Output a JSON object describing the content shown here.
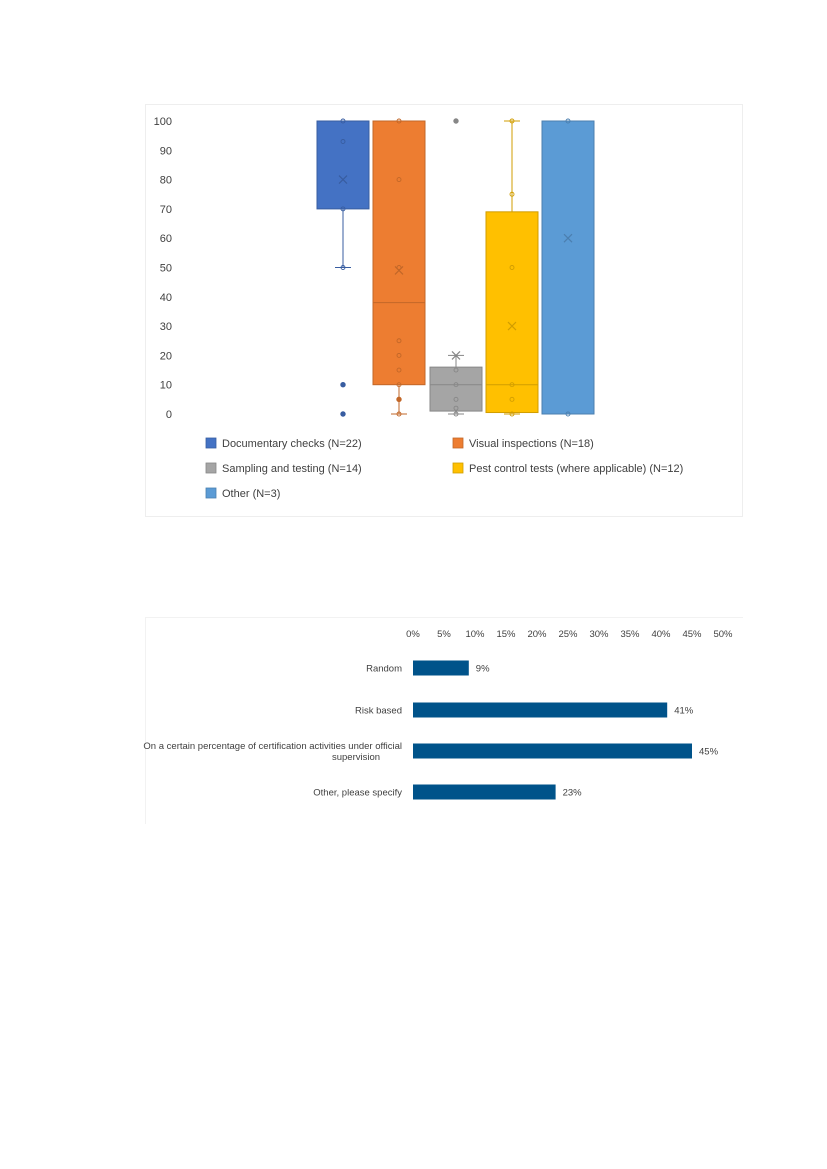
{
  "chart_data": [
    {
      "type": "boxplot",
      "ylim": [
        0,
        100
      ],
      "y_ticks": [
        0,
        10,
        20,
        30,
        40,
        50,
        60,
        70,
        80,
        90,
        100
      ],
      "grid": false,
      "legend_position": "bottom",
      "series": [
        {
          "name": "Documentary checks (N=22)",
          "color": "#4472C4",
          "box": {
            "min": 50,
            "q1": 70,
            "median": 100,
            "q3": 100,
            "max": 100,
            "mean": 80
          },
          "outliers": [
            10,
            0
          ],
          "points": [
            100,
            93,
            70,
            50,
            10,
            0
          ]
        },
        {
          "name": "Visual inspections (N=18)",
          "color": "#ED7D31",
          "box": {
            "min": 0,
            "q1": 10,
            "median": 38,
            "q3": 100,
            "max": 100,
            "mean": 49
          },
          "outliers": [
            5
          ],
          "points": [
            100,
            80,
            50,
            25,
            20,
            15,
            10,
            5,
            0
          ]
        },
        {
          "name": "Sampling and testing (N=14)",
          "color": "#A5A5A5",
          "box": {
            "min": 0,
            "q1": 1,
            "median": 10,
            "q3": 16,
            "max": 20,
            "mean": 20
          },
          "outliers": [
            100
          ],
          "points": [
            15,
            10,
            5,
            2,
            0
          ]
        },
        {
          "name": "Pest control tests (where applicable) (N=12)",
          "color": "#FFC000",
          "box": {
            "min": 0,
            "q1": 0.5,
            "median": 10,
            "q3": 69,
            "max": 100,
            "mean": 30
          },
          "outliers": [],
          "points": [
            100,
            75,
            50,
            10,
            5,
            0
          ]
        },
        {
          "name": "Other (N=3)",
          "color": "#5B9BD5",
          "box": {
            "min": 0,
            "q1": 0,
            "median": 100,
            "q3": 100,
            "max": 100,
            "mean": 60
          },
          "outliers": [],
          "points": [
            100,
            0
          ]
        }
      ]
    },
    {
      "type": "bar",
      "orientation": "horizontal",
      "categories": [
        "Random",
        "Risk based",
        "On a certain percentage of certification activities under official supervision",
        "Other, please specify"
      ],
      "values": [
        9,
        41,
        45,
        23
      ],
      "data_labels": [
        "9%",
        "41%",
        "45%",
        "23%"
      ],
      "xlim": [
        0,
        50
      ],
      "x_ticks": [
        "0%",
        "5%",
        "10%",
        "15%",
        "20%",
        "25%",
        "30%",
        "35%",
        "40%",
        "45%",
        "50%"
      ],
      "x_axis_position": "top",
      "grid": false,
      "color": "#00538A"
    }
  ]
}
